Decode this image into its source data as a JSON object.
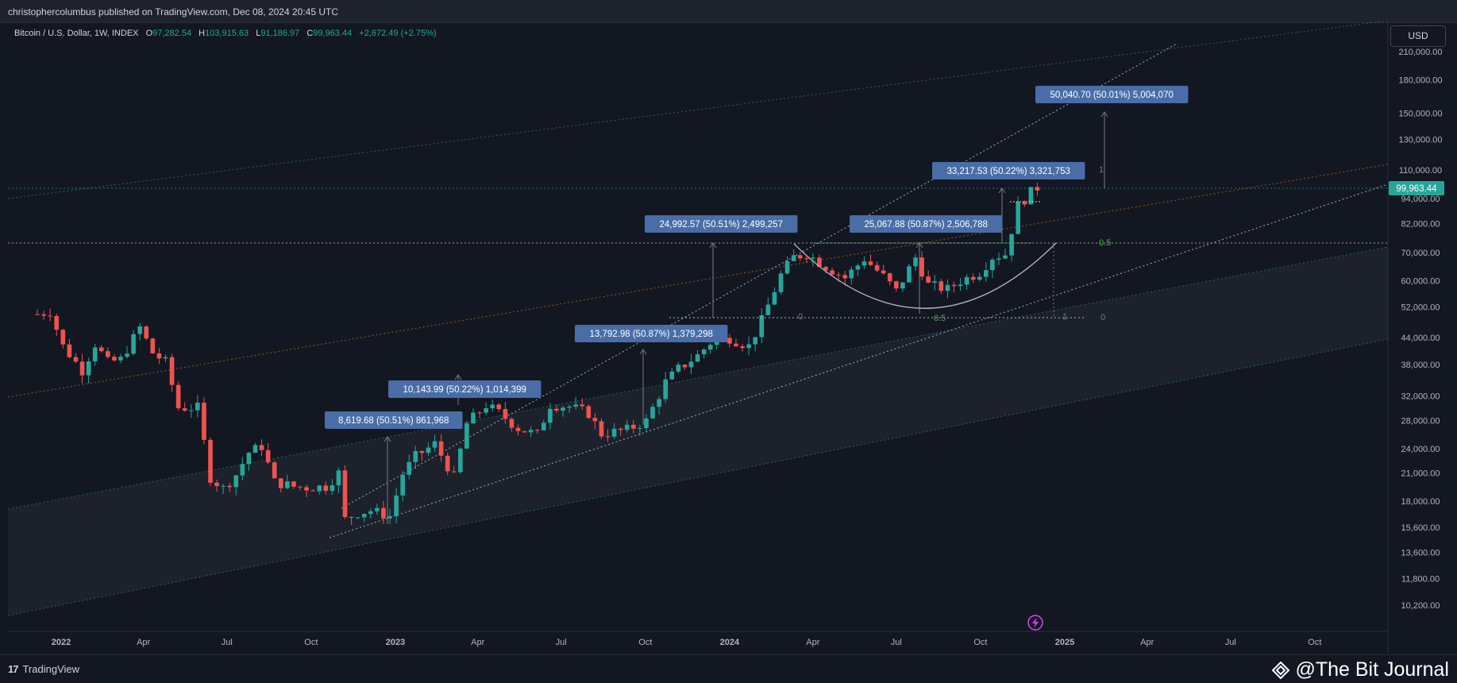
{
  "header": {
    "published_text": "christophercolumbus published on TradingView.com, Dec 08, 2024 20:45 UTC"
  },
  "legend": {
    "symbol": "Bitcoin / U.S. Dollar, 1W, INDEX",
    "open_label": "O",
    "open": "97,282.54",
    "high_label": "H",
    "high": "103,915.63",
    "low_label": "L",
    "low": "91,186.97",
    "close_label": "C",
    "close": "99,963.44",
    "change": "+2,672.49 (+2.75%)"
  },
  "price_scale": {
    "currency": "USD",
    "current_price": "99,963.44"
  },
  "footer": {
    "brand": "TradingView",
    "watermark": "@The Bit Journal"
  },
  "colors": {
    "background": "#131722",
    "up": "#26a69a",
    "down": "#ef5350",
    "label_box": "#4a6da7",
    "current_price": "#26a69a",
    "fib_level": "#4caf50"
  },
  "chart_data": {
    "type": "candlestick",
    "scale": "log",
    "ylim": [
      9500,
      240000
    ],
    "x_ticks": [
      "2022",
      "Apr",
      "Jul",
      "Oct",
      "2023",
      "Apr",
      "Jul",
      "Oct",
      "2024",
      "Apr",
      "Jul",
      "Oct",
      "2025",
      "Apr",
      "Jul",
      "Oct"
    ],
    "y_ticks": [
      10200,
      11800,
      13600,
      15600,
      18000,
      21000,
      24000,
      28000,
      32000,
      38000,
      44000,
      52000,
      60000,
      70000,
      82000,
      94000,
      110000,
      130000,
      150000,
      180000,
      210000
    ],
    "y_tick_labels": [
      "10,200.00",
      "11,800.00",
      "13,600.00",
      "15,600.00",
      "18,000.00",
      "21,000.00",
      "24,000.00",
      "28,000.00",
      "32,000.00",
      "38,000.00",
      "44,000.00",
      "52,000.00",
      "60,000.00",
      "70,000.00",
      "82,000.00",
      "94,000.00",
      "110,000.00",
      "130,000.00",
      "150,000.00",
      "180,000.00",
      "210,000.00"
    ],
    "weekly_close_path": [
      [
        "2021-12-06",
        50000
      ],
      [
        "2021-12-20",
        50800
      ],
      [
        "2022-01-03",
        42000
      ],
      [
        "2022-01-24",
        36800
      ],
      [
        "2022-02-07",
        42500
      ],
      [
        "2022-02-21",
        38500
      ],
      [
        "2022-03-07",
        39000
      ],
      [
        "2022-03-28",
        46500
      ],
      [
        "2022-04-11",
        40500
      ],
      [
        "2022-04-25",
        38500
      ],
      [
        "2022-05-09",
        30000
      ],
      [
        "2022-05-30",
        30000
      ],
      [
        "2022-06-13",
        20500
      ],
      [
        "2022-06-27",
        19300
      ],
      [
        "2022-07-11",
        20800
      ],
      [
        "2022-07-25",
        23500
      ],
      [
        "2022-08-08",
        24300
      ],
      [
        "2022-08-22",
        20000
      ],
      [
        "2022-09-12",
        19500
      ],
      [
        "2022-09-26",
        19400
      ],
      [
        "2022-10-17",
        19500
      ],
      [
        "2022-10-31",
        21000
      ],
      [
        "2022-11-07",
        16300
      ],
      [
        "2022-11-21",
        16900
      ],
      [
        "2022-12-05",
        17100
      ],
      [
        "2022-12-26",
        16600
      ],
      [
        "2023-01-09",
        20900
      ],
      [
        "2023-01-23",
        23000
      ],
      [
        "2023-02-13",
        24600
      ],
      [
        "2023-03-06",
        20500
      ],
      [
        "2023-03-20",
        27500
      ],
      [
        "2023-04-10",
        30400
      ],
      [
        "2023-04-24",
        29200
      ],
      [
        "2023-05-15",
        26800
      ],
      [
        "2023-06-05",
        25900
      ],
      [
        "2023-06-19",
        30500
      ],
      [
        "2023-07-10",
        30200
      ],
      [
        "2023-07-31",
        29100
      ],
      [
        "2023-08-14",
        26000
      ],
      [
        "2023-09-11",
        26600
      ],
      [
        "2023-10-02",
        27900
      ],
      [
        "2023-10-23",
        34500
      ],
      [
        "2023-11-06",
        37100
      ],
      [
        "2023-11-27",
        39900
      ],
      [
        "2023-12-11",
        42800
      ],
      [
        "2024-01-01",
        43900
      ],
      [
        "2024-01-22",
        42000
      ],
      [
        "2024-02-05",
        48300
      ],
      [
        "2024-02-26",
        62000
      ],
      [
        "2024-03-11",
        68300
      ],
      [
        "2024-03-25",
        69600
      ],
      [
        "2024-04-15",
        64900
      ],
      [
        "2024-05-06",
        61000
      ],
      [
        "2024-05-27",
        67700
      ],
      [
        "2024-06-17",
        61500
      ],
      [
        "2024-07-01",
        56700
      ],
      [
        "2024-07-22",
        68200
      ],
      [
        "2024-08-05",
        58700
      ],
      [
        "2024-08-26",
        57300
      ],
      [
        "2024-09-09",
        60000
      ],
      [
        "2024-09-30",
        62900
      ],
      [
        "2024-10-14",
        68400
      ],
      [
        "2024-10-28",
        69400
      ],
      [
        "2024-11-11",
        90500
      ],
      [
        "2024-11-25",
        97300
      ],
      [
        "2024-12-02",
        99963.44
      ]
    ],
    "annotations": [
      {
        "text": "8,619.68 (50.51%) 861,968"
      },
      {
        "text": "10,143.99 (50.22%) 1,014,399"
      },
      {
        "text": "13,792.98 (50.87%) 1,379,298"
      },
      {
        "text": "24,992.57 (50.51%) 2,499,257"
      },
      {
        "text": "25,067.88 (50.87%) 2,506,788"
      },
      {
        "text": "33,217.53 (50.22%) 3,321,753"
      },
      {
        "text": "50,040.70 (50.01%) 5,004,070"
      }
    ],
    "fib_labels": [
      "0.5",
      "0",
      "0.5",
      "1",
      "0",
      "1"
    ]
  }
}
